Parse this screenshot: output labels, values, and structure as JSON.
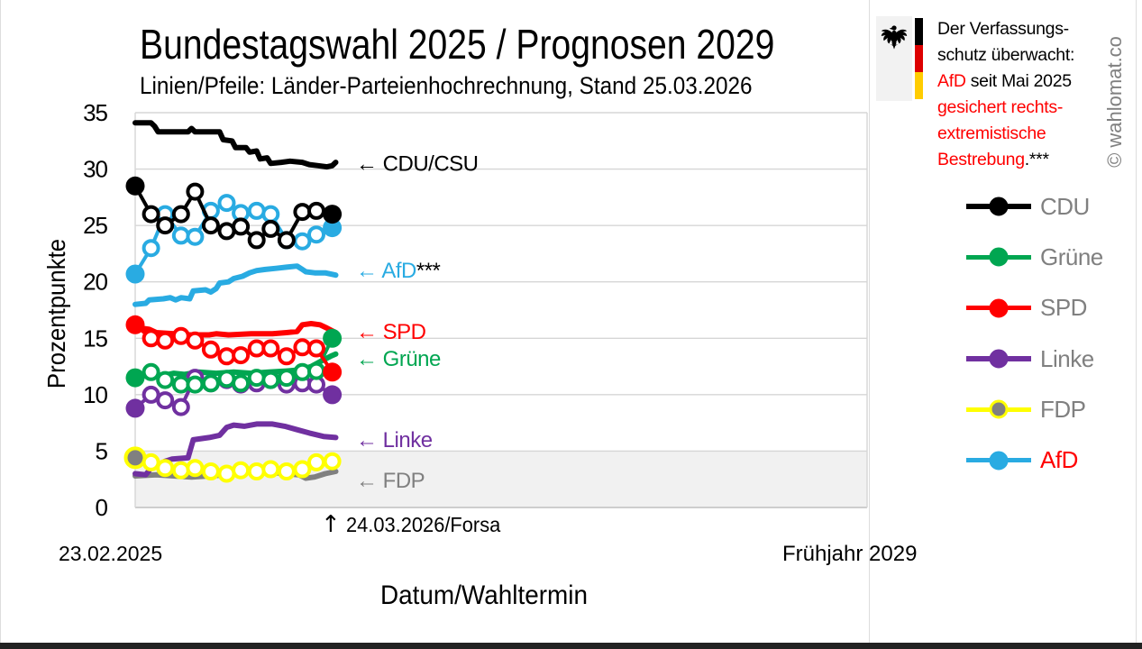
{
  "header": {
    "title": "Bundestagswahl 2025 / Prognosen 2029",
    "subtitle": "Linien/Pfeile: Länder-Parteienhochrechnung, Stand 25.03.2026"
  },
  "watermark": "© wahlomat.co",
  "info_box": {
    "line1": "Der Verfassungs-",
    "line2": "schutz überwacht:",
    "line3_highlight": "AfD",
    "line3_rest": " seit Mai 2025",
    "line4": "gesichert rechts-",
    "line5": "extremistische",
    "line6_highlight": "Bestrebung",
    "line6_rest": ".***",
    "highlight_color": "#FF0000",
    "flag_colors": [
      "#000000",
      "#DD0000",
      "#FFCC00"
    ]
  },
  "legend": {
    "items": [
      {
        "label": "CDU",
        "line_color": "#000000",
        "marker_fill": "#000000",
        "label_color": "#808080"
      },
      {
        "label": "Grüne",
        "line_color": "#00A651",
        "marker_fill": "#00A651",
        "label_color": "#808080"
      },
      {
        "label": "SPD",
        "line_color": "#FF0000",
        "marker_fill": "#FF0000",
        "label_color": "#808080"
      },
      {
        "label": "Linke",
        "line_color": "#7030A0",
        "marker_fill": "#7030A0",
        "label_color": "#808080"
      },
      {
        "label": "FDP",
        "line_color": "#FFFF00",
        "marker_fill": "#808080",
        "label_color": "#808080"
      },
      {
        "label": "AfD",
        "line_color": "#29ABE2",
        "marker_fill": "#29ABE2",
        "label_color": "#FF0000"
      }
    ]
  },
  "chart_data": {
    "type": "line",
    "title": "Bundestagswahl 2025 / Prognosen 2029",
    "ylabel": "Prozentpunkte",
    "xlabel": "Datum/Wahltermin",
    "ylim": [
      0,
      35
    ],
    "yticks": [
      0,
      5,
      10,
      15,
      20,
      25,
      30,
      35
    ],
    "grid": true,
    "x_axis": {
      "start_label": "23.02.2025",
      "end_label": "Frühjahr 2029",
      "range": [
        2025.14,
        2029.3
      ]
    },
    "threshold_band": {
      "from": 0,
      "to": 5,
      "color": "#F1F1F1"
    },
    "annotation": {
      "arrow": "↑",
      "text": "24.03.2026/Forsa",
      "x": 2026.26
    },
    "series_labels": [
      {
        "label": "← CDU/CSU",
        "color": "#000000",
        "y": 30.5
      },
      {
        "label": "← AfD",
        "color": "#29ABE2",
        "y": 21.0,
        "suffix": "***",
        "suffix_color": "#000000"
      },
      {
        "label": "← SPD",
        "color": "#FF0000",
        "y": 15.6
      },
      {
        "label": "← Grüne",
        "color": "#00A651",
        "y": 13.2
      },
      {
        "label": "← Linke",
        "color": "#7030A0",
        "y": 6.0
      },
      {
        "label": "← FDP",
        "color": "#808080",
        "y": 2.4
      }
    ],
    "projections": [
      {
        "name": "fdp",
        "label": "FDP",
        "color": "#808080",
        "points": [
          [
            2025.14,
            2.8
          ],
          [
            2025.26,
            2.9
          ],
          [
            2025.36,
            2.8
          ],
          [
            2025.46,
            2.7
          ],
          [
            2025.56,
            2.8
          ],
          [
            2025.66,
            2.9
          ],
          [
            2025.73,
            3.2
          ],
          [
            2025.82,
            3.1
          ],
          [
            2025.92,
            3.1
          ],
          [
            2026.0,
            3.0
          ],
          [
            2026.07,
            2.9
          ],
          [
            2026.11,
            2.6
          ],
          [
            2026.16,
            2.7
          ],
          [
            2026.22,
            3.0
          ],
          [
            2026.28,
            3.2
          ]
        ]
      },
      {
        "name": "linke",
        "label": "Linke",
        "color": "#7030A0",
        "points": [
          [
            2025.14,
            3.0
          ],
          [
            2025.2,
            2.9
          ],
          [
            2025.23,
            3.5
          ],
          [
            2025.27,
            3.7
          ],
          [
            2025.31,
            4.1
          ],
          [
            2025.35,
            4.3
          ],
          [
            2025.44,
            4.4
          ],
          [
            2025.47,
            6.0
          ],
          [
            2025.56,
            6.2
          ],
          [
            2025.62,
            6.4
          ],
          [
            2025.66,
            7.1
          ],
          [
            2025.7,
            7.3
          ],
          [
            2025.76,
            7.2
          ],
          [
            2025.83,
            7.4
          ],
          [
            2025.92,
            7.4
          ],
          [
            2025.99,
            7.2
          ],
          [
            2026.06,
            6.9
          ],
          [
            2026.13,
            6.6
          ],
          [
            2026.21,
            6.3
          ],
          [
            2026.28,
            6.2
          ]
        ]
      },
      {
        "name": "gruene",
        "label": "Grüne",
        "color": "#00A651",
        "points": [
          [
            2025.14,
            11.6
          ],
          [
            2025.22,
            11.8
          ],
          [
            2025.3,
            11.7
          ],
          [
            2025.36,
            11.9
          ],
          [
            2025.42,
            11.8
          ],
          [
            2025.5,
            12.0
          ],
          [
            2025.6,
            11.9
          ],
          [
            2025.7,
            12.0
          ],
          [
            2025.8,
            11.9
          ],
          [
            2025.9,
            12.0
          ],
          [
            2026.0,
            12.1
          ],
          [
            2026.08,
            12.2
          ],
          [
            2026.14,
            12.5
          ],
          [
            2026.2,
            13.0
          ],
          [
            2026.25,
            13.4
          ],
          [
            2026.28,
            13.6
          ]
        ]
      },
      {
        "name": "spd",
        "label": "SPD",
        "color": "#FF0000",
        "points": [
          [
            2025.14,
            16.3
          ],
          [
            2025.17,
            15.9
          ],
          [
            2025.22,
            15.8
          ],
          [
            2025.26,
            15.5
          ],
          [
            2025.36,
            15.4
          ],
          [
            2025.41,
            15.2
          ],
          [
            2025.45,
            15.3
          ],
          [
            2025.56,
            15.3
          ],
          [
            2025.6,
            15.4
          ],
          [
            2025.67,
            15.3
          ],
          [
            2025.8,
            15.4
          ],
          [
            2025.92,
            15.4
          ],
          [
            2026.0,
            15.5
          ],
          [
            2026.06,
            15.6
          ],
          [
            2026.09,
            16.2
          ],
          [
            2026.14,
            16.3
          ],
          [
            2026.19,
            16.2
          ],
          [
            2026.23,
            15.9
          ],
          [
            2026.28,
            15.5
          ]
        ]
      },
      {
        "name": "afd",
        "label": "AfD",
        "color": "#29ABE2",
        "points": [
          [
            2025.14,
            18.0
          ],
          [
            2025.2,
            18.1
          ],
          [
            2025.22,
            18.4
          ],
          [
            2025.3,
            18.5
          ],
          [
            2025.34,
            18.6
          ],
          [
            2025.37,
            18.4
          ],
          [
            2025.4,
            18.6
          ],
          [
            2025.45,
            18.5
          ],
          [
            2025.47,
            19.2
          ],
          [
            2025.54,
            19.3
          ],
          [
            2025.57,
            19.1
          ],
          [
            2025.6,
            19.4
          ],
          [
            2025.62,
            19.9
          ],
          [
            2025.67,
            20.0
          ],
          [
            2025.7,
            20.3
          ],
          [
            2025.75,
            20.5
          ],
          [
            2025.79,
            20.8
          ],
          [
            2025.83,
            21.0
          ],
          [
            2025.88,
            21.1
          ],
          [
            2025.94,
            21.2
          ],
          [
            2026.0,
            21.3
          ],
          [
            2026.06,
            21.4
          ],
          [
            2026.09,
            21.1
          ],
          [
            2026.11,
            20.9
          ],
          [
            2026.16,
            20.8
          ],
          [
            2026.22,
            20.8
          ],
          [
            2026.28,
            20.6
          ]
        ]
      },
      {
        "name": "cdu",
        "label": "CDU/CSU",
        "color": "#000000",
        "points": [
          [
            2025.14,
            34.1
          ],
          [
            2025.23,
            34.1
          ],
          [
            2025.25,
            33.8
          ],
          [
            2025.27,
            33.3
          ],
          [
            2025.44,
            33.3
          ],
          [
            2025.46,
            33.6
          ],
          [
            2025.48,
            33.3
          ],
          [
            2025.62,
            33.3
          ],
          [
            2025.64,
            32.6
          ],
          [
            2025.69,
            32.5
          ],
          [
            2025.71,
            31.9
          ],
          [
            2025.77,
            31.9
          ],
          [
            2025.79,
            31.5
          ],
          [
            2025.83,
            31.6
          ],
          [
            2025.85,
            30.9
          ],
          [
            2025.89,
            31.0
          ],
          [
            2025.91,
            30.5
          ],
          [
            2025.97,
            30.6
          ],
          [
            2026.02,
            30.7
          ],
          [
            2026.09,
            30.6
          ],
          [
            2026.13,
            30.4
          ],
          [
            2026.18,
            30.3
          ],
          [
            2026.23,
            30.2
          ],
          [
            2026.26,
            30.3
          ],
          [
            2026.28,
            30.6
          ]
        ]
      }
    ],
    "polls": {
      "x": [
        2025.14,
        2025.23,
        2025.31,
        2025.4,
        2025.48,
        2025.57,
        2025.66,
        2025.74,
        2025.83,
        2025.91,
        2026.0,
        2026.09,
        2026.17,
        2026.26
      ],
      "series": [
        {
          "name": "fdp",
          "label": "FDP",
          "color": "#FFFF00",
          "first_fill": "#808080",
          "first_ring": "#FFFF00",
          "end_filled": false,
          "values": [
            4.4,
            4.0,
            3.5,
            3.3,
            3.5,
            3.2,
            3.0,
            3.3,
            3.2,
            3.4,
            3.2,
            3.4,
            4.0,
            4.1
          ]
        },
        {
          "name": "linke",
          "label": "Linke",
          "color": "#7030A0",
          "end_filled": true,
          "values": [
            8.8,
            10.0,
            9.5,
            8.9,
            11.5,
            11.0,
            11.3,
            10.9,
            11.0,
            11.3,
            10.9,
            11.0,
            10.9,
            10.0
          ]
        },
        {
          "name": "gruene",
          "label": "Grüne",
          "color": "#00A651",
          "end_filled": true,
          "values": [
            11.5,
            12.0,
            11.3,
            10.9,
            10.9,
            11.0,
            11.4,
            11.0,
            11.5,
            11.3,
            11.5,
            12.0,
            12.1,
            15.0
          ]
        },
        {
          "name": "spd",
          "label": "SPD",
          "color": "#FF0000",
          "end_filled": true,
          "values": [
            16.2,
            15.0,
            14.8,
            15.2,
            14.8,
            14.0,
            13.4,
            13.5,
            14.1,
            14.1,
            13.4,
            14.2,
            14.1,
            12.0
          ]
        },
        {
          "name": "afd",
          "label": "AfD",
          "color": "#29ABE2",
          "end_filled": true,
          "values": [
            20.7,
            23.0,
            26.0,
            24.1,
            24.0,
            26.3,
            27.0,
            26.1,
            26.3,
            26.0,
            23.7,
            23.6,
            24.2,
            24.8
          ]
        },
        {
          "name": "cdu",
          "label": "CDU",
          "color": "#000000",
          "end_filled": true,
          "values": [
            28.5,
            26.0,
            25.0,
            26.0,
            28.0,
            25.0,
            24.5,
            24.9,
            23.7,
            24.7,
            23.7,
            26.2,
            26.3,
            26.0
          ]
        }
      ]
    }
  }
}
